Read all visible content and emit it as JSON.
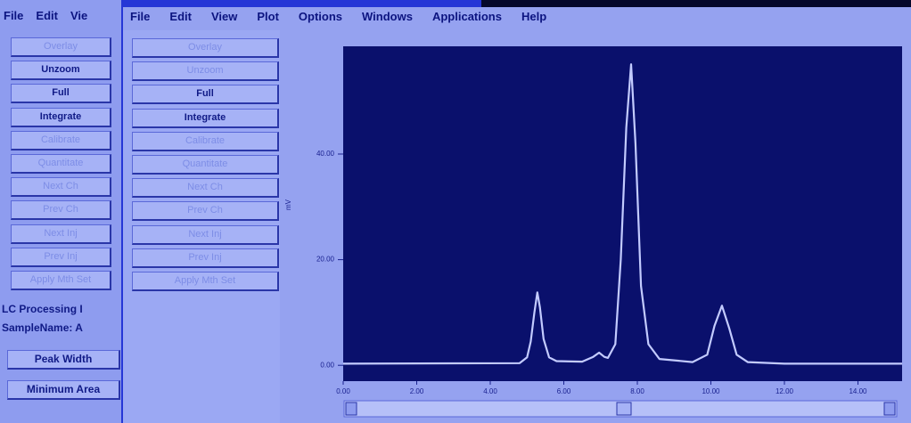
{
  "back_window": {
    "menu": [
      "File",
      "Edit",
      "Vie"
    ],
    "buttons": [
      {
        "label": "Overlay",
        "enabled": false
      },
      {
        "label": "Unzoom",
        "enabled": true
      },
      {
        "label": "Full",
        "enabled": true
      },
      {
        "label": "Integrate",
        "enabled": true
      },
      {
        "label": "Calibrate",
        "enabled": false
      },
      {
        "label": "Quantitate",
        "enabled": false
      },
      {
        "label": "Next Ch",
        "enabled": false
      },
      {
        "label": "Prev Ch",
        "enabled": false
      },
      {
        "label": "Next Inj",
        "enabled": false
      },
      {
        "label": "Prev Inj",
        "enabled": false
      },
      {
        "label": "Apply Mth Set",
        "enabled": false
      }
    ],
    "panel_title": "LC Processing I",
    "sample_name": "SampleName: A",
    "extra_buttons": [
      "Peak Width",
      "Minimum Area"
    ]
  },
  "menu": [
    "File",
    "Edit",
    "View",
    "Plot",
    "Options",
    "Windows",
    "Applications",
    "Help"
  ],
  "buttons": [
    {
      "label": "Overlay",
      "enabled": false
    },
    {
      "label": "Unzoom",
      "enabled": false
    },
    {
      "label": "Full",
      "enabled": true
    },
    {
      "label": "Integrate",
      "enabled": true
    },
    {
      "label": "Calibrate",
      "enabled": false
    },
    {
      "label": "Quantitate",
      "enabled": false
    },
    {
      "label": "Next Ch",
      "enabled": false
    },
    {
      "label": "Prev Ch",
      "enabled": false
    },
    {
      "label": "Next Inj",
      "enabled": false
    },
    {
      "label": "Prev Inj",
      "enabled": false
    },
    {
      "label": "Apply Mth Set",
      "enabled": false
    }
  ],
  "chart_data": {
    "type": "line",
    "y_label": "mV",
    "color": "#c3cbff",
    "x": [
      0,
      4.8,
      5.0,
      5.1,
      5.2,
      5.28,
      5.35,
      5.45,
      5.6,
      5.8,
      6.5,
      6.8,
      6.96,
      7.1,
      7.2,
      7.4,
      7.55,
      7.7,
      7.83,
      7.95,
      8.1,
      8.3,
      8.6,
      9.5,
      9.9,
      10.1,
      10.3,
      10.5,
      10.7,
      11.0,
      12,
      15.2
    ],
    "values": [
      0.3,
      0.4,
      1.5,
      4.5,
      10,
      13.8,
      11,
      5,
      1.5,
      0.8,
      0.7,
      1.6,
      2.4,
      1.6,
      1.4,
      4,
      20,
      45,
      57,
      42,
      15,
      4,
      1.2,
      0.6,
      2,
      7.5,
      11.3,
      7,
      2,
      0.6,
      0.3,
      0.3
    ],
    "xlim": [
      0,
      15.2
    ],
    "ylim": [
      -3,
      60.4
    ],
    "xticks": [
      {
        "value": 0,
        "label": "0.00"
      },
      {
        "value": 2,
        "label": "2.00"
      },
      {
        "value": 4,
        "label": "4.00"
      },
      {
        "value": 6,
        "label": "6.00"
      },
      {
        "value": 8,
        "label": "8.00"
      },
      {
        "value": 10,
        "label": "10.00"
      },
      {
        "value": 12,
        "label": "12.00"
      },
      {
        "value": 14,
        "label": "14.00"
      }
    ],
    "yticks": [
      {
        "value": 0,
        "label": "0.00"
      },
      {
        "value": 20,
        "label": "20.00"
      },
      {
        "value": 40,
        "label": "40.00"
      }
    ]
  }
}
